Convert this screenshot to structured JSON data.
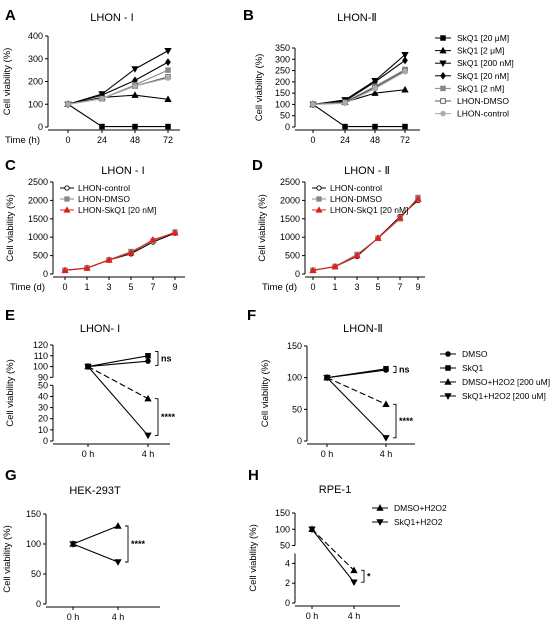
{
  "chart_data": [
    {
      "id": "A",
      "type": "line",
      "panel_label": "A",
      "title": "LHON - I",
      "xlabel": "Time (h)",
      "ylabel": "Cell viability (%)",
      "x_ticks": [
        "0",
        "24",
        "48",
        "72"
      ],
      "y_ticks": [
        "0",
        "100",
        "200",
        "300",
        "400"
      ],
      "ylim": [
        0,
        400
      ],
      "series": [
        {
          "name": "SkQ1 [20 μM]",
          "marker": "square",
          "values": [
            100,
            2,
            2,
            2
          ]
        },
        {
          "name": "SkQ1 [2 μM]",
          "marker": "triangle-up",
          "values": [
            100,
            130,
            140,
            122
          ]
        },
        {
          "name": "SkQ1 [200 nM]",
          "marker": "triangle-down",
          "values": [
            100,
            145,
            255,
            335
          ]
        },
        {
          "name": "SkQ1 [20 nM]",
          "marker": "diamond",
          "values": [
            100,
            140,
            205,
            285
          ]
        },
        {
          "name": "SkQ1 [2 nM]",
          "marker": "square-gray",
          "values": [
            100,
            125,
            185,
            250
          ]
        },
        {
          "name": "LHON-DMSO",
          "marker": "square-open",
          "values": [
            100,
            125,
            180,
            220
          ]
        },
        {
          "name": "LHON-control",
          "marker": "circle-gray",
          "values": [
            100,
            125,
            180,
            215
          ]
        }
      ]
    },
    {
      "id": "B",
      "type": "line",
      "panel_label": "B",
      "title": "LHON-Ⅱ",
      "xlabel": "",
      "ylabel": "Cell viability (%)",
      "x_ticks": [
        "0",
        "24",
        "48",
        "72"
      ],
      "y_ticks": [
        "0",
        "50",
        "100",
        "150",
        "200",
        "250",
        "300",
        "350"
      ],
      "ylim": [
        0,
        350
      ],
      "series": [
        {
          "name": "SkQ1 [20 μM]",
          "marker": "square",
          "values": [
            100,
            2,
            2,
            2
          ]
        },
        {
          "name": "SkQ1 [2 μM]",
          "marker": "triangle-up",
          "values": [
            100,
            110,
            150,
            165
          ]
        },
        {
          "name": "SkQ1 [200 nM]",
          "marker": "triangle-down",
          "values": [
            100,
            120,
            205,
            320
          ]
        },
        {
          "name": "SkQ1 [20 nM]",
          "marker": "diamond",
          "values": [
            100,
            115,
            200,
            295
          ]
        },
        {
          "name": "SkQ1 [2 nM]",
          "marker": "square-gray",
          "values": [
            100,
            110,
            180,
            255
          ]
        },
        {
          "name": "LHON-DMSO",
          "marker": "square-open",
          "values": [
            100,
            110,
            175,
            250
          ]
        },
        {
          "name": "LHON-control",
          "marker": "circle-gray",
          "values": [
            100,
            105,
            170,
            245
          ]
        }
      ],
      "legend": [
        "SkQ1 [20 μM]",
        "SkQ1 [2 μM]",
        "SkQ1 [200 nM]",
        "SkQ1 [20 nM]",
        "SkQ1 [2 nM]",
        "LHON-DMSO",
        "LHON-control"
      ]
    },
    {
      "id": "C",
      "type": "line",
      "panel_label": "C",
      "title": "LHON - I",
      "xlabel": "Time (d)",
      "ylabel": "Cell viability (%)",
      "x_ticks": [
        "0",
        "1",
        "3",
        "5",
        "7",
        "9"
      ],
      "y_ticks": [
        "0",
        "500",
        "1000",
        "1500",
        "2000",
        "2500"
      ],
      "ylim": [
        0,
        2500
      ],
      "series": [
        {
          "name": "LHON-control",
          "marker": "circle-open",
          "values": [
            100,
            160,
            380,
            550,
            870,
            1110
          ]
        },
        {
          "name": "LHON-DMSO",
          "marker": "square-gray",
          "values": [
            100,
            165,
            385,
            610,
            900,
            1140
          ]
        },
        {
          "name": "LHON-SkQ1 [20 nM]",
          "marker": "triangle-red",
          "values": [
            100,
            162,
            382,
            580,
            930,
            1120
          ]
        }
      ]
    },
    {
      "id": "D",
      "type": "line",
      "panel_label": "D",
      "title": "LHON - Ⅱ",
      "xlabel": "Time (d)",
      "ylabel": "Cell viability (%)",
      "x_ticks": [
        "0",
        "1",
        "3",
        "5",
        "7",
        "9"
      ],
      "y_ticks": [
        "0",
        "500",
        "1000",
        "1500",
        "2000",
        "2500"
      ],
      "ylim": [
        0,
        2500
      ],
      "series": [
        {
          "name": "LHON-control",
          "marker": "circle-open",
          "values": [
            100,
            200,
            480,
            980,
            1560,
            2000
          ]
        },
        {
          "name": "LHON-DMSO",
          "marker": "square-gray",
          "values": [
            100,
            205,
            530,
            970,
            1500,
            2080
          ]
        },
        {
          "name": "LHON-SkQ1 [20 nM]",
          "marker": "triangle-red",
          "values": [
            100,
            200,
            500,
            975,
            1530,
            2040
          ]
        }
      ]
    },
    {
      "id": "E",
      "type": "line",
      "panel_label": "E",
      "title": "LHON- I",
      "xlabel": "",
      "ylabel": "Cell viability (%)",
      "x_ticks": [
        "0 h",
        "4 h"
      ],
      "y_ticks": [
        "0",
        "10",
        "20",
        "30",
        "40",
        "50",
        "90",
        "100",
        "110",
        "120"
      ],
      "broken_axis": [
        [
          0,
          50
        ],
        [
          90,
          120
        ]
      ],
      "series": [
        {
          "name": "DMSO",
          "marker": "circle",
          "values": [
            100,
            105
          ]
        },
        {
          "name": "SkQ1",
          "marker": "square",
          "values": [
            100,
            110
          ]
        },
        {
          "name": "DMSO+H2O2 [200 uM]",
          "marker": "triangle-up",
          "values": [
            100,
            38
          ]
        },
        {
          "name": "SkQ1+H2O2 [200 uM]",
          "marker": "triangle-down",
          "values": [
            100,
            5
          ]
        }
      ],
      "annotations": [
        "ns",
        "****"
      ]
    },
    {
      "id": "F",
      "type": "line",
      "panel_label": "F",
      "title": "LHON-Ⅱ",
      "xlabel": "",
      "ylabel": "Cell viability (%)",
      "x_ticks": [
        "0 h",
        "4 h"
      ],
      "y_ticks": [
        "0",
        "50",
        "100",
        "150"
      ],
      "ylim": [
        0,
        150
      ],
      "series": [
        {
          "name": "DMSO",
          "marker": "circle",
          "values": [
            100,
            112
          ]
        },
        {
          "name": "SkQ1",
          "marker": "square",
          "values": [
            100,
            114
          ]
        },
        {
          "name": "DMSO+H2O2 [200 uM]",
          "marker": "triangle-up",
          "values": [
            100,
            58
          ]
        },
        {
          "name": "SkQ1+H2O2 [200 uM]",
          "marker": "triangle-down",
          "values": [
            100,
            5
          ]
        }
      ],
      "legend": [
        "DMSO",
        "SkQ1",
        "DMSO+H2O2 [200 uM]",
        "SkQ1+H2O2 [200 uM]"
      ],
      "annotations": [
        "ns",
        "****"
      ]
    },
    {
      "id": "G",
      "type": "line",
      "panel_label": "G",
      "title": "HEK-293T",
      "xlabel": "",
      "ylabel": "Cell viability (%)",
      "x_ticks": [
        "0 h",
        "4 h"
      ],
      "y_ticks": [
        "0",
        "50",
        "100",
        "150"
      ],
      "ylim": [
        0,
        150
      ],
      "series": [
        {
          "name": "DMSO+H2O2",
          "marker": "triangle-up",
          "values": [
            100,
            130
          ]
        },
        {
          "name": "SkQ1+H2O2",
          "marker": "triangle-down",
          "values": [
            100,
            70
          ]
        }
      ],
      "annotations": [
        "****"
      ]
    },
    {
      "id": "H",
      "type": "line",
      "panel_label": "H",
      "title": "RPE-1",
      "xlabel": "",
      "ylabel": "Cell viability (%)",
      "x_ticks": [
        "0 h",
        "4 h"
      ],
      "y_ticks": [
        "0",
        "2",
        "4",
        "50",
        "100",
        "150"
      ],
      "broken_axis": [
        [
          0,
          5
        ],
        [
          50,
          150
        ]
      ],
      "series": [
        {
          "name": "DMSO+H2O2",
          "marker": "triangle-up",
          "values": [
            100,
            3.3
          ]
        },
        {
          "name": "SkQ1+H2O2",
          "marker": "triangle-down",
          "values": [
            100,
            2.1
          ]
        }
      ],
      "legend": [
        "DMSO+H2O2",
        "SkQ1+H2O2"
      ],
      "annotations": [
        "*"
      ]
    }
  ]
}
